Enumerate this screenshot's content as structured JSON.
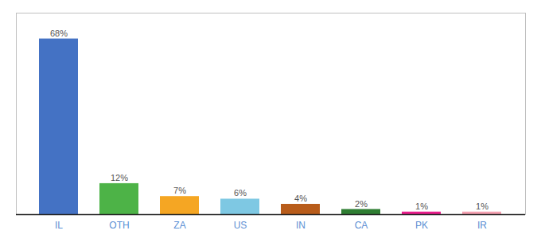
{
  "chart_data": {
    "type": "bar",
    "categories": [
      "IL",
      "OTH",
      "ZA",
      "US",
      "IN",
      "CA",
      "PK",
      "IR"
    ],
    "values": [
      68,
      12,
      7,
      6,
      4,
      2,
      1,
      1
    ],
    "value_labels": [
      "68%",
      "12%",
      "7%",
      "6%",
      "4%",
      "2%",
      "1%",
      "1%"
    ],
    "colors": [
      "#4472c4",
      "#4db347",
      "#f5a623",
      "#7ec8e3",
      "#b85c1a",
      "#2e7d32",
      "#e91e8c",
      "#f4a0b0"
    ],
    "ylim": [
      0,
      78
    ],
    "data_labels": true,
    "tick_labels": "x",
    "grid": false
  }
}
